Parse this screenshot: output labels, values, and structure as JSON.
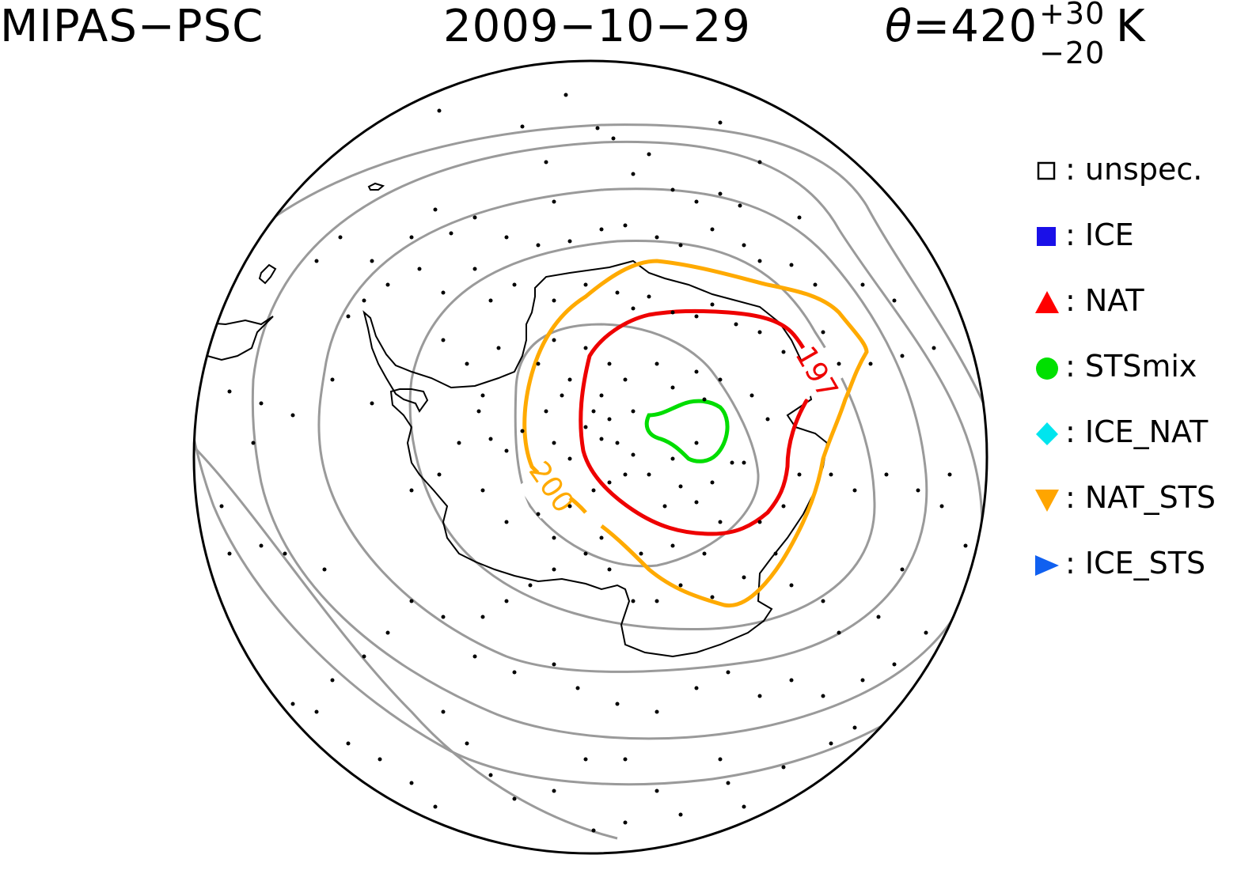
{
  "header": {
    "instrument": "MIPAS−PSC",
    "date": "2009−10−29",
    "theta_symbol": "θ",
    "theta_value": "=420",
    "theta_plus": "+30",
    "theta_minus": "−20",
    "theta_unit": "K"
  },
  "legend": [
    {
      "symbol": "open-square-icon",
      "label": ": unspec.",
      "color": "#000000"
    },
    {
      "symbol": "square-icon",
      "label": ": ICE",
      "color": "#1a10e8"
    },
    {
      "symbol": "triangle-up-icon",
      "label": ": NAT",
      "color": "#ff0000"
    },
    {
      "symbol": "circle-icon",
      "label": ": STSmix",
      "color": "#00e000"
    },
    {
      "symbol": "diamond-icon",
      "label": ": ICE_NAT",
      "color": "#00e5ee"
    },
    {
      "symbol": "triangle-down-icon",
      "label": ": NAT_STS",
      "color": "#ffa500"
    },
    {
      "symbol": "triangle-right-icon",
      "label": ": ICE_STS",
      "color": "#1060f0"
    }
  ],
  "contour_labels": {
    "red": "197",
    "orange": "200"
  },
  "colors": {
    "grey_contour": "#9a9a9a",
    "red_contour": "#ee0000",
    "orange_contour": "#ffaa00",
    "green_contour": "#00dd00"
  }
}
